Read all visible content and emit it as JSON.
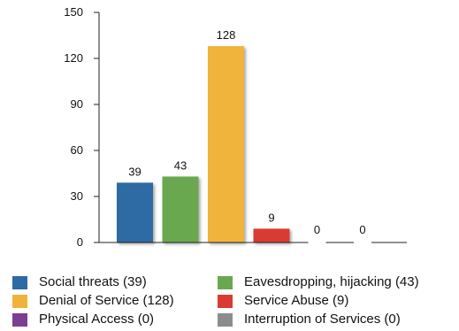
{
  "chart_data": {
    "type": "bar",
    "categories": [
      "Social threats",
      "Eavesdropping, hijacking",
      "Denial of Service",
      "Service Abuse",
      "Physical Access",
      "Interruption of Services"
    ],
    "values": [
      39,
      43,
      128,
      9,
      0,
      0
    ],
    "data_labels": [
      "39",
      "43",
      "128",
      "9",
      "0",
      "0"
    ],
    "colors": [
      "#2e6aa3",
      "#6aa84f",
      "#f0b33a",
      "#d93a33",
      "#7b3f91",
      "#8c8c8c"
    ],
    "ylim": [
      0,
      150
    ],
    "yticks": [
      0,
      30,
      60,
      90,
      120,
      150
    ],
    "ytick_labels": [
      "0",
      "30",
      "60",
      "90",
      "120",
      "150"
    ],
    "grid": false,
    "legend_position": "bottom",
    "legend": [
      {
        "label": "Social threats (39)",
        "color": "#2e6aa3"
      },
      {
        "label": "Eavesdropping, hijacking (43)",
        "color": "#6aa84f"
      },
      {
        "label": "Denial of Service (128)",
        "color": "#f0b33a"
      },
      {
        "label": "Service Abuse (9)",
        "color": "#d93a33"
      },
      {
        "label": "Physical Access (0)",
        "color": "#7b3f91"
      },
      {
        "label": "Interruption of Services (0)",
        "color": "#8c8c8c"
      }
    ]
  }
}
